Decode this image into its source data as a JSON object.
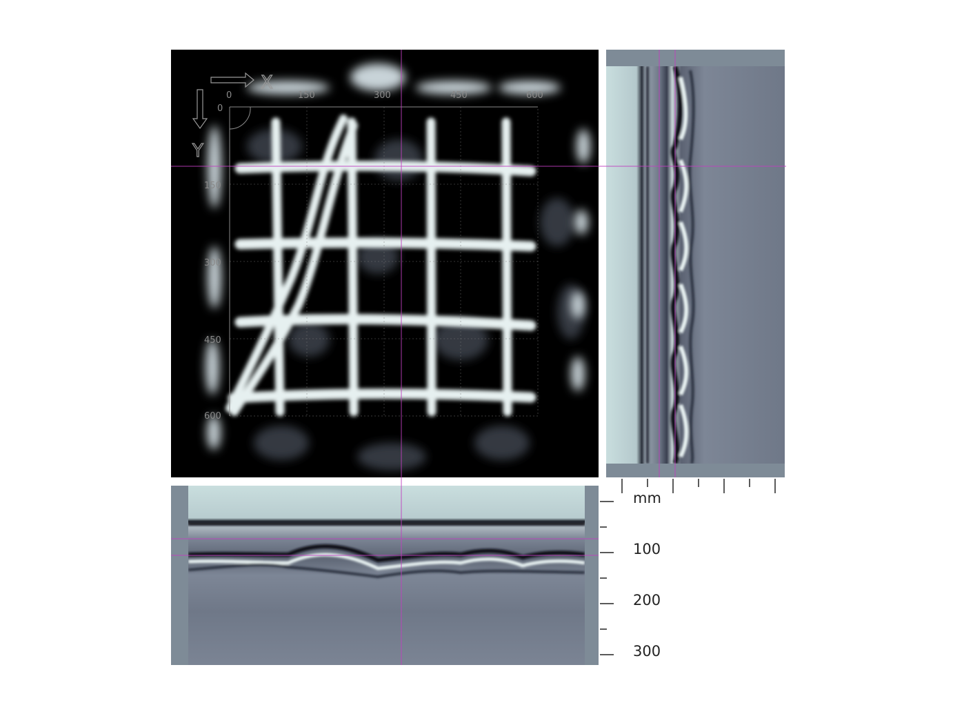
{
  "plan_view": {
    "x_axis_letter": "X",
    "y_axis_letter": "Y",
    "x_ticks": [
      "0",
      "150",
      "300",
      "450",
      "600"
    ],
    "y_ticks": [
      "0",
      "150",
      "300",
      "450",
      "600"
    ]
  },
  "depth_scale": {
    "unit": "mm",
    "labels": [
      "100",
      "200",
      "300"
    ]
  },
  "colors": {
    "crosshair": "#c040c0",
    "rebar": "#e8f2f2",
    "background": "#000000",
    "radargram_gray": "#7e8b97",
    "radargram_light": "#c9dede"
  }
}
